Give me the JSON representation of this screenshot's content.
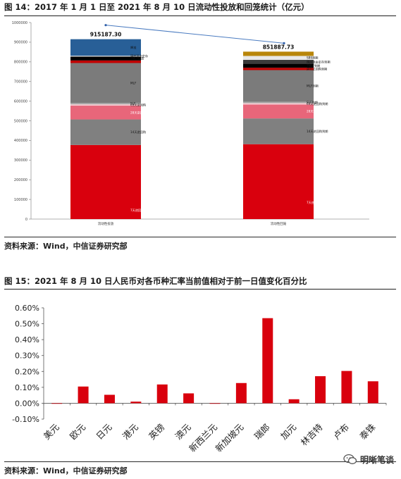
{
  "figure14": {
    "title": "图 14：2017 年 1 月 1 日至 2021 年 8 月 10 日流动性投放和回笼统计（亿元）",
    "source": "资料来源：Wind，中信证券研究部"
  },
  "figure15": {
    "title": "图 15：2021 年 8 月 10 日人民币对各币种汇率当前值相对于前一日值变化百分比",
    "source": "资料来源：Wind，中信证券研究部"
  },
  "watermark": {
    "text": "明晰笔谈",
    "icon": "wechat-icon"
  },
  "chart_data": [
    {
      "type": "bar",
      "stacked": true,
      "categories": [
        "流动性投放",
        "流动性回笼"
      ],
      "ylim": [
        0,
        1000000
      ],
      "yticks": [
        0,
        100000,
        200000,
        300000,
        400000,
        500000,
        600000,
        700000,
        800000,
        900000,
        1000000
      ],
      "ytick_labels": [
        "0",
        "100000",
        "200000",
        "300000",
        "400000",
        "500000",
        "600000",
        "700000",
        "800000",
        "900000",
        "1000000"
      ],
      "totals": [
        915187.3,
        851887.73
      ],
      "total_labels": [
        "915187.30",
        "851887.73"
      ],
      "series": [
        {
          "color": "#d9000d",
          "values": [
            377000,
            381000
          ],
          "labels": [
            "7天逆回购",
            "7天逆回购到期"
          ]
        },
        {
          "color": "#808080",
          "values": [
            130000,
            131000
          ],
          "labels": [
            "14天逆回购",
            "14天逆回购到期"
          ]
        },
        {
          "color": "#e8667a",
          "values": [
            70000,
            71000
          ],
          "labels": [
            "28天逆回购",
            "28天逆回购到期"
          ]
        },
        {
          "color": "#f4c9cf",
          "values": [
            7000,
            7000
          ],
          "labels": [
            "63天逆回购",
            "63天逆回购到期"
          ]
        },
        {
          "color": "#a6a6a6",
          "values": [
            7000,
            7000
          ],
          "labels": [
            "SLF",
            "SLF到期"
          ]
        },
        {
          "color": "#7b7b7b",
          "values": [
            203000,
            161000
          ],
          "labels": [
            "MLF",
            "MLF到期"
          ]
        },
        {
          "color": "#c00000",
          "values": [
            13000,
            12000
          ],
          "labels": [
            "",
            "央行正回购到期"
          ]
        },
        {
          "color": "#000000",
          "values": [
            20000,
            20000
          ],
          "labels": [
            "TMLF投放",
            "TMLF到期"
          ]
        },
        {
          "color": "#3b3b3b",
          "values": [
            0,
            20000
          ],
          "labels": [
            "",
            "国库现金定存到期"
          ]
        },
        {
          "color": "#e8e8e8",
          "values": [
            4000,
            20000
          ],
          "labels": [
            "国库现金定存",
            "SBS到期"
          ]
        },
        {
          "color": "#285f97",
          "values": [
            84187.3,
            0
          ],
          "labels": [
            "降准",
            ""
          ]
        },
        {
          "color": "#b8860b",
          "values": [
            0,
            21887.73
          ],
          "labels": [
            "",
            ""
          ]
        }
      ]
    },
    {
      "type": "bar",
      "categories": [
        "美元",
        "欧元",
        "日元",
        "港元",
        "英镑",
        "澳元",
        "新西兰元",
        "新加坡元",
        "瑞郎",
        "加元",
        "林吉特",
        "卢布",
        "泰铢"
      ],
      "values": [
        -0.001,
        0.105,
        0.053,
        0.01,
        0.118,
        0.062,
        0.0,
        0.127,
        0.535,
        0.025,
        0.17,
        0.203,
        0.138
      ],
      "ylim": [
        -0.1,
        0.6
      ],
      "yticks": [
        -0.1,
        0.0,
        0.1,
        0.2,
        0.3,
        0.4,
        0.5,
        0.6
      ],
      "ytick_labels": [
        "-0.10%",
        "0.00%",
        "0.10%",
        "0.20%",
        "0.30%",
        "0.40%",
        "0.50%",
        "0.60%"
      ],
      "color": "#d9000d"
    }
  ]
}
